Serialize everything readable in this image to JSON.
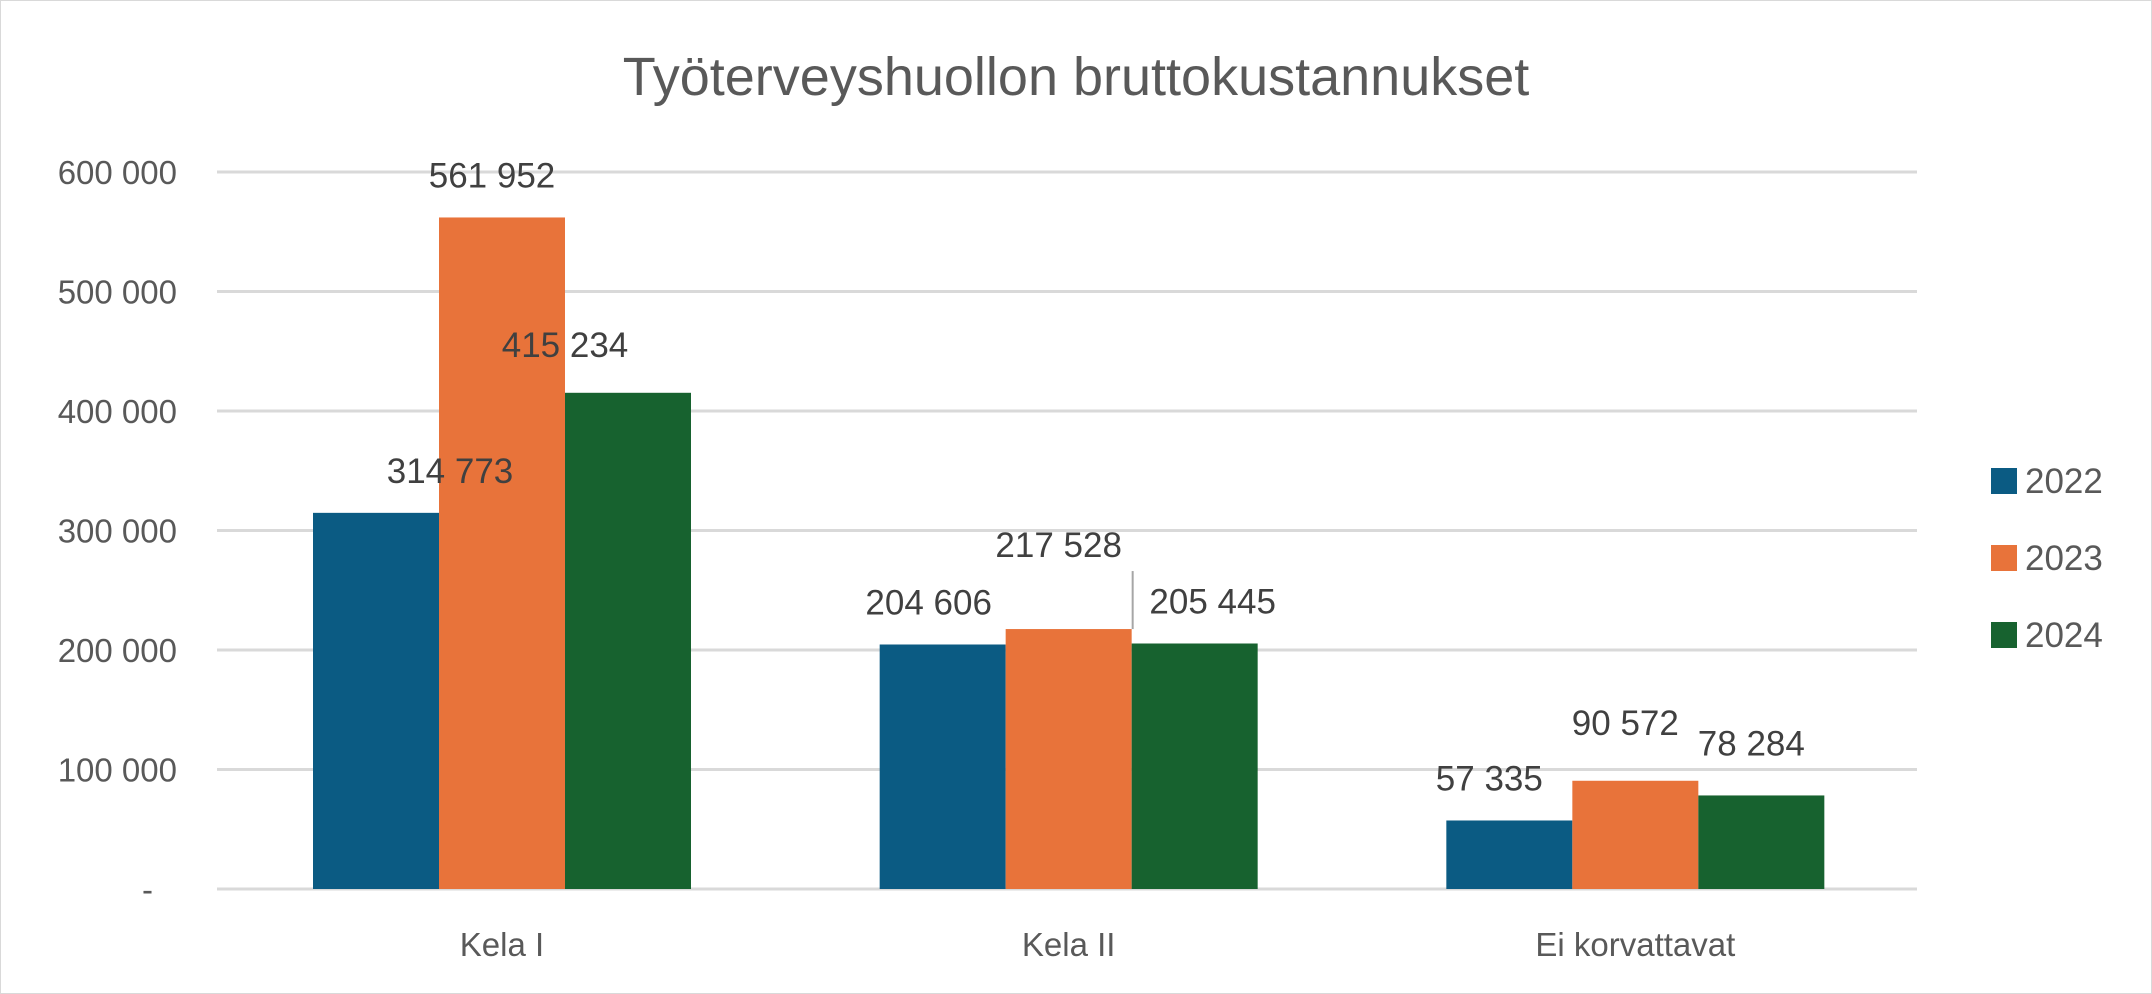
{
  "chart_data": {
    "type": "bar",
    "title": "Työterveyshuollon bruttokustannukset",
    "xlabel": "",
    "ylabel": "",
    "categories": [
      "Kela I",
      "Kela II",
      "Ei korvattavat"
    ],
    "series": [
      {
        "name": "2022",
        "color": "#0b5b83",
        "values": [
          314773,
          204606,
          57335
        ],
        "labels": [
          "314 773",
          "204 606",
          "57 335"
        ]
      },
      {
        "name": "2023",
        "color": "#e8733a",
        "values": [
          561952,
          217528,
          90572
        ],
        "labels": [
          "561 952",
          "217 528",
          "90 572"
        ]
      },
      {
        "name": "2024",
        "color": "#17622f",
        "values": [
          415234,
          205445,
          78284
        ],
        "labels": [
          "415 234",
          "205 445",
          "78 284"
        ]
      }
    ],
    "ylim": [
      0,
      600000
    ],
    "yticks": [
      {
        "value": 0,
        "label": "-"
      },
      {
        "value": 100000,
        "label": "100 000"
      },
      {
        "value": 200000,
        "label": "200 000"
      },
      {
        "value": 300000,
        "label": "300 000"
      },
      {
        "value": 400000,
        "label": "400 000"
      },
      {
        "value": 500000,
        "label": "500 000"
      },
      {
        "value": 600000,
        "label": "600 000"
      }
    ],
    "grid": true,
    "legend_position": "right",
    "data_labels": true
  }
}
